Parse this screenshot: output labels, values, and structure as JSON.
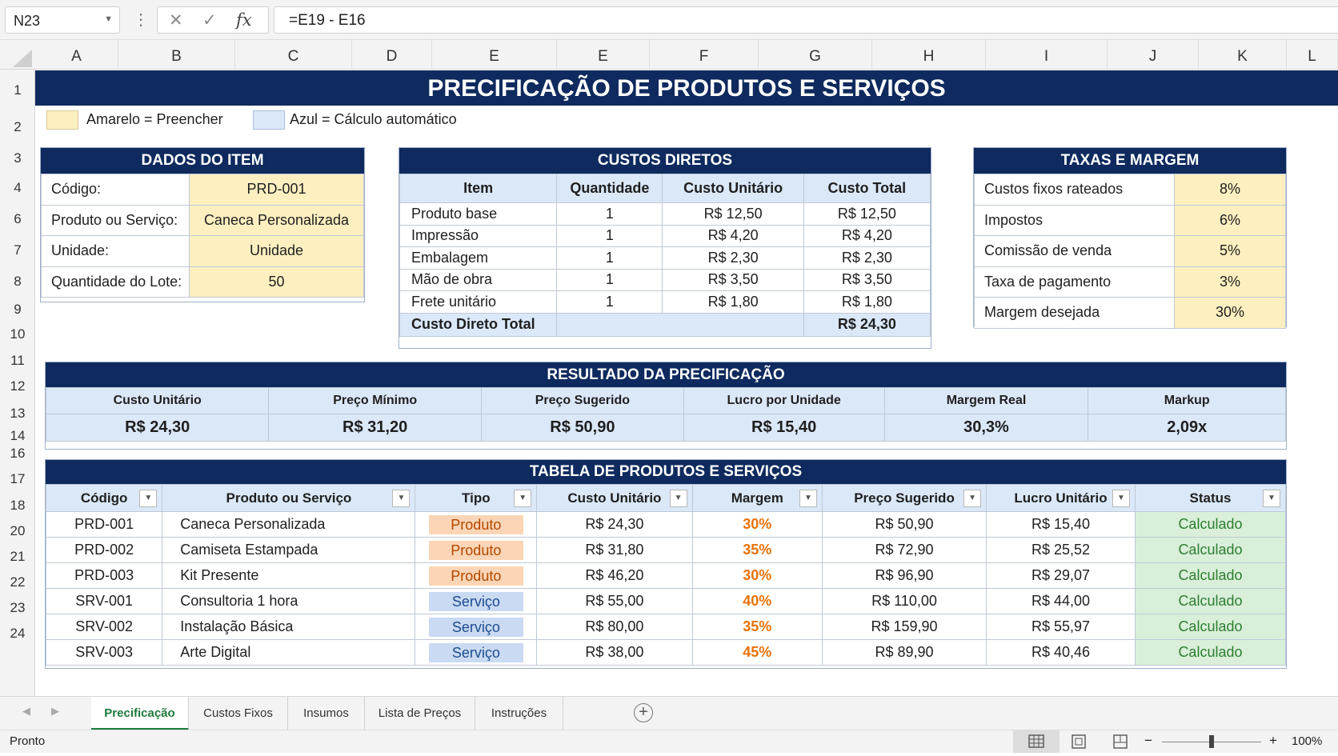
{
  "formula_bar": {
    "name_box": "N23",
    "fx": "fx",
    "formula": "=E19 - E16",
    "cancel": "✕",
    "confirm": "✓"
  },
  "columns": [
    "A",
    "B",
    "C",
    "D",
    "E",
    "E",
    "F",
    "G",
    "H",
    "I",
    "J",
    "K",
    "L"
  ],
  "rows": [
    "1",
    "2",
    "3",
    "4",
    "6",
    "7",
    "8",
    "9",
    "10",
    "11",
    "12",
    "13",
    "14",
    "16",
    "17",
    "18",
    "20",
    "21",
    "22",
    "23",
    "24"
  ],
  "title": "PRECIFICAÇÃO DE PRODUTOS E SERVIÇOS",
  "legend": {
    "yellow": "Amarelo = Preencher",
    "blue": "Azul = Cálculo automático",
    "yellow_color": "#fdefc0",
    "blue_color": "#dbe8f8"
  },
  "item": {
    "header": "DADOS DO ITEM",
    "rows": [
      {
        "label": "Código:",
        "value": "PRD-001"
      },
      {
        "label": "Produto ou Serviço:",
        "value": "Caneca Personalizada"
      },
      {
        "label": "Unidade:",
        "value": "Unidade"
      },
      {
        "label": "Quantidade do Lote:",
        "value": "50"
      }
    ]
  },
  "costs": {
    "header": "CUSTOS DIRETOS",
    "cols": [
      "Item",
      "Quantidade",
      "Custo Unitário",
      "Custo Total"
    ],
    "rows": [
      [
        "Produto base",
        "1",
        "R$ 12,50",
        "R$ 12,50"
      ],
      [
        "Impressão",
        "1",
        "R$ 4,20",
        "R$ 4,20"
      ],
      [
        "Embalagem",
        "1",
        "R$ 2,30",
        "R$ 2,30"
      ],
      [
        "Mão de obra",
        "1",
        "R$ 3,50",
        "R$ 3,50"
      ],
      [
        "Frete unitário",
        "1",
        "R$ 1,80",
        "R$ 1,80"
      ]
    ],
    "total_label": "Custo Direto Total",
    "total_value": "R$ 24,30"
  },
  "rates": {
    "header": "TAXAS E MARGEM",
    "rows": [
      {
        "label": "Custos fixos rateados",
        "value": "8%"
      },
      {
        "label": "Impostos",
        "value": "6%"
      },
      {
        "label": "Comissão de venda",
        "value": "5%"
      },
      {
        "label": "Taxa de pagamento",
        "value": "3%"
      },
      {
        "label": "Margem desejada",
        "value": "30%"
      }
    ]
  },
  "result": {
    "header": "RESULTADO DA PRECIFICAÇÃO",
    "labels": [
      "Custo Unitário",
      "Preço Mínimo",
      "Preço Sugerido",
      "Lucro por Unidade",
      "Margem Real",
      "Markup"
    ],
    "values": [
      "R$ 24,30",
      "R$ 31,20",
      "R$ 50,90",
      "R$ 15,40",
      "30,3%",
      "2,09x"
    ]
  },
  "products": {
    "header": "TABELA DE PRODUTOS E SERVIÇOS",
    "cols": [
      "Código",
      "Produto ou Serviço",
      "Tipo",
      "Custo Unitário",
      "Margem",
      "Preço Sugerido",
      "Lucro Unitário",
      "Status"
    ],
    "rows": [
      [
        "PRD-001",
        "Caneca Personalizada",
        "Produto",
        "R$  24,30",
        "30%",
        "R$  50,90",
        "R$  15,40",
        "Calculado"
      ],
      [
        "PRD-002",
        "Camiseta Estampada",
        "Produto",
        "R$  31,80",
        "35%",
        "R$  72,90",
        "R$  25,52",
        "Calculado"
      ],
      [
        "PRD-003",
        "Kit Presente",
        "Produto",
        "R$  46,20",
        "30%",
        "R$  96,90",
        "R$  29,07",
        "Calculado"
      ],
      [
        "SRV-001",
        "Consultoria 1 hora",
        "Serviço",
        "R$  55,00",
        "40%",
        "R$  110,00",
        "R$  44,00",
        "Calculado"
      ],
      [
        "SRV-002",
        "Instalação Básica",
        "Serviço",
        "R$  80,00",
        "35%",
        "R$  159,90",
        "R$  55,97",
        "Calculado"
      ],
      [
        "SRV-003",
        "Arte Digital",
        "Serviço",
        "R$  38,00",
        "45%",
        "R$  89,90",
        "R$  40,46",
        "Calculado"
      ]
    ]
  },
  "sheet_tabs": [
    "Precificação",
    "Custos Fixos",
    "Insumos",
    "Lista de Preços",
    "Instruções"
  ],
  "active_tab": "Precificação",
  "status": {
    "ready": "Pronto",
    "zoom": "100%",
    "minus": "−",
    "plus": "+"
  },
  "colors": {
    "navy": "#0e2a5e",
    "green": "#1e7a3c",
    "orange": "#e8720a"
  }
}
